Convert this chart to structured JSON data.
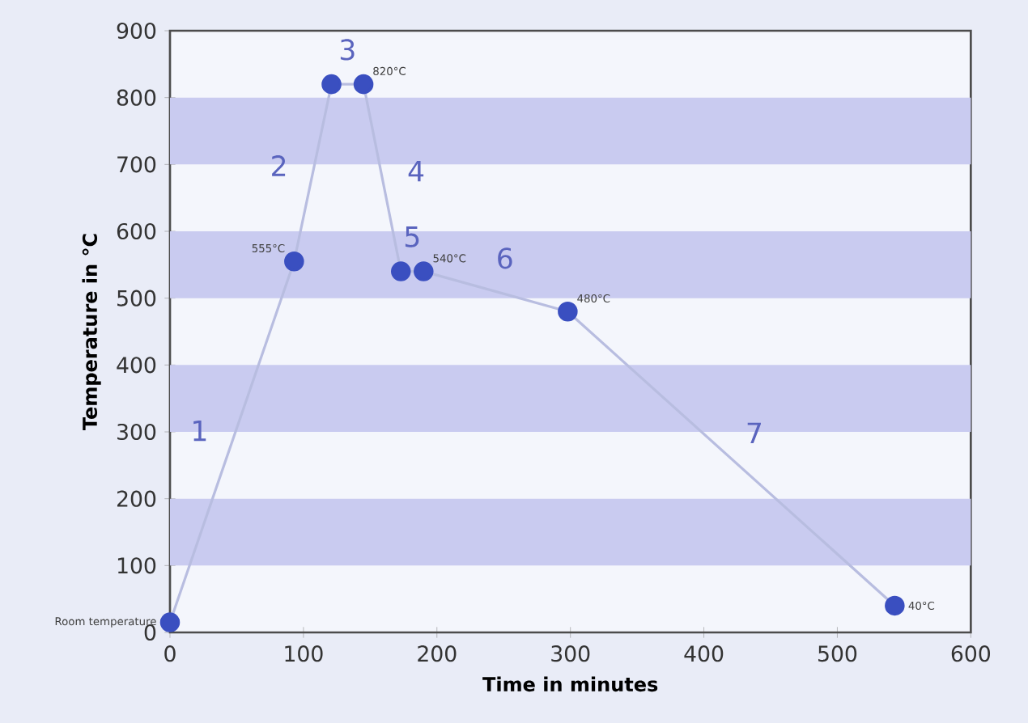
{
  "chart_data": {
    "type": "line",
    "xlabel": "Time in minutes",
    "ylabel": "Temperature in °C",
    "x": [
      0,
      93,
      121,
      145,
      173,
      190,
      298,
      543
    ],
    "values": [
      15,
      555,
      820,
      820,
      540,
      540,
      480,
      40
    ],
    "color": "#3a4fc0",
    "marker": "circle",
    "xlim": [
      0,
      600
    ],
    "ylim": [
      0,
      900
    ],
    "xticks": [
      0,
      100,
      200,
      300,
      400,
      500,
      600
    ],
    "yticks": [
      0,
      100,
      200,
      300,
      400,
      500,
      600,
      700,
      800,
      900
    ],
    "bands": [
      {
        "axis": "y",
        "from": 100,
        "to": 200,
        "color": "#c9cbf0"
      },
      {
        "axis": "y",
        "from": 300,
        "to": 400,
        "color": "#c9cbf0"
      },
      {
        "axis": "y",
        "from": 500,
        "to": 600,
        "color": "#c9cbf0"
      },
      {
        "axis": "y",
        "from": 700,
        "to": 800,
        "color": "#c9cbf0"
      }
    ],
    "annotations": [
      {
        "text": "Room temperature",
        "x": 0,
        "y": 15
      },
      {
        "text": "555°C",
        "x": 93,
        "y": 555
      },
      {
        "text": "820°C",
        "x": 145,
        "y": 820
      },
      {
        "text": "540°C",
        "x": 190,
        "y": 540
      },
      {
        "text": "480°C",
        "x": 298,
        "y": 480
      },
      {
        "text": "40°C",
        "x": 543,
        "y": 40
      },
      "1",
      "2",
      "3",
      "4",
      "5",
      "6",
      "7"
    ]
  }
}
